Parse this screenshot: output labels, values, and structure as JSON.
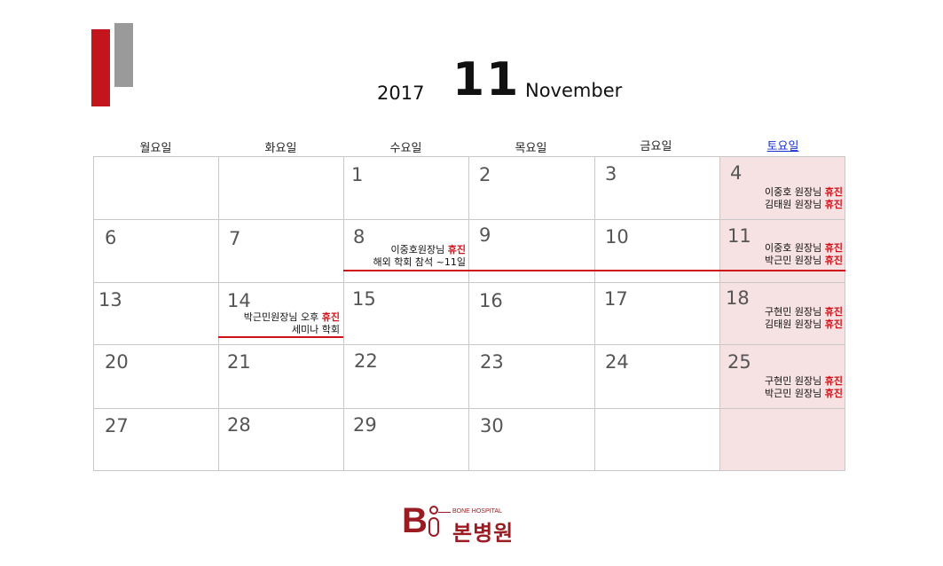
{
  "header": {
    "year": "2017",
    "month_number": "11",
    "month_name": "November"
  },
  "weekdays": [
    "월요일",
    "화요일",
    "수요일",
    "목요일",
    "금요일",
    "토요일"
  ],
  "days": {
    "d1": "1",
    "d2": "2",
    "d3": "3",
    "d4": "4",
    "d6": "6",
    "d7": "7",
    "d8": "8",
    "d9": "9",
    "d10": "10",
    "d11": "11",
    "d13": "13",
    "d14": "14",
    "d15": "15",
    "d16": "16",
    "d17": "17",
    "d18": "18",
    "d20": "20",
    "d21": "21",
    "d22": "22",
    "d23": "23",
    "d24": "24",
    "d25": "25",
    "d27": "27",
    "d28": "28",
    "d29": "29",
    "d30": "30"
  },
  "events": {
    "day4": [
      {
        "text": "이중호 원장님 ",
        "tag": "휴진"
      },
      {
        "text": "김태원 원장님 ",
        "tag": "휴진"
      }
    ],
    "day8": [
      {
        "text": "이중호원장님 ",
        "tag": "휴진"
      },
      {
        "text": "해외 학회 참석 ~11일",
        "tag": ""
      }
    ],
    "day11": [
      {
        "text": "이중호 원장님 ",
        "tag": "휴진"
      },
      {
        "text": "박근민 원장님 ",
        "tag": "휴진"
      }
    ],
    "day14": [
      {
        "text": "박근민원장님 오후 ",
        "tag": "휴진"
      },
      {
        "text": "세미나 학회",
        "tag": ""
      }
    ],
    "day18": [
      {
        "text": "구현민 원장님 ",
        "tag": "휴진"
      },
      {
        "text": "김태원 원장님 ",
        "tag": "휴진"
      }
    ],
    "day25": [
      {
        "text": "구현민 원장님 ",
        "tag": "휴진"
      },
      {
        "text": "박근민 원장님 ",
        "tag": "휴진"
      }
    ]
  },
  "logo": {
    "letter_b": "B",
    "english": "BONE HOSPITAL",
    "korean": "본병원"
  },
  "colors": {
    "accent_red": "#c3161c",
    "saturday_bg": "#f6e1e3",
    "saturday_text": "#1a2fd0",
    "logo": "#9a1b22"
  }
}
